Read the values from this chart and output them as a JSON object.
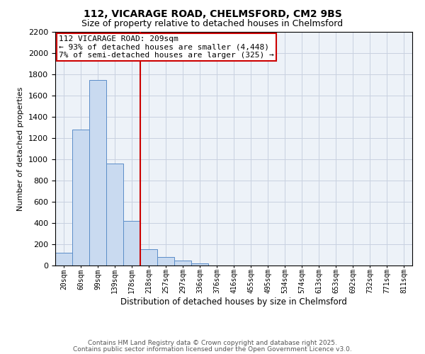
{
  "title1": "112, VICARAGE ROAD, CHELMSFORD, CM2 9BS",
  "title2": "Size of property relative to detached houses in Chelmsford",
  "xlabel": "Distribution of detached houses by size in Chelmsford",
  "ylabel": "Number of detached properties",
  "categories": [
    "20sqm",
    "60sqm",
    "99sqm",
    "139sqm",
    "178sqm",
    "218sqm",
    "257sqm",
    "297sqm",
    "336sqm",
    "376sqm",
    "416sqm",
    "455sqm",
    "495sqm",
    "534sqm",
    "574sqm",
    "613sqm",
    "653sqm",
    "692sqm",
    "732sqm",
    "771sqm",
    "811sqm"
  ],
  "values": [
    120,
    1280,
    1750,
    960,
    420,
    155,
    80,
    45,
    20,
    0,
    0,
    0,
    0,
    0,
    0,
    0,
    0,
    0,
    0,
    0,
    0
  ],
  "bar_color": "#c9daf0",
  "bar_edge_color": "#5b8dc8",
  "vline_color": "#cc0000",
  "annotation_text": "112 VICARAGE ROAD: 209sqm\n← 93% of detached houses are smaller (4,448)\n7% of semi-detached houses are larger (325) →",
  "annotation_box_color": "#cc0000",
  "ylim": [
    0,
    2200
  ],
  "yticks": [
    0,
    200,
    400,
    600,
    800,
    1000,
    1200,
    1400,
    1600,
    1800,
    2000,
    2200
  ],
  "grid_color": "#c8d0e0",
  "bg_color": "#edf2f8",
  "footer1": "Contains HM Land Registry data © Crown copyright and database right 2025.",
  "footer2": "Contains public sector information licensed under the Open Government Licence v3.0."
}
